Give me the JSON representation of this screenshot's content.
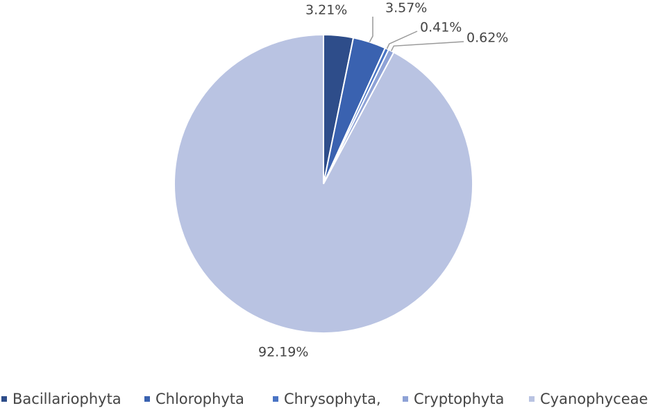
{
  "chart_data": {
    "type": "pie",
    "categories": [
      "Bacillariophyta",
      "Chlorophyta",
      "Chrysophyta,",
      "Cryptophyta",
      "Cyanophyceae"
    ],
    "values": [
      3.21,
      3.57,
      0.41,
      0.62,
      92.19
    ],
    "value_labels": [
      "3.21%",
      "3.57%",
      "0.41%",
      "0.62%",
      "92.19%"
    ],
    "colors": [
      "#2e4d8a",
      "#3a62b0",
      "#4a74c4",
      "#8ea2d6",
      "#b9c3e2"
    ],
    "legend": "bottom"
  }
}
